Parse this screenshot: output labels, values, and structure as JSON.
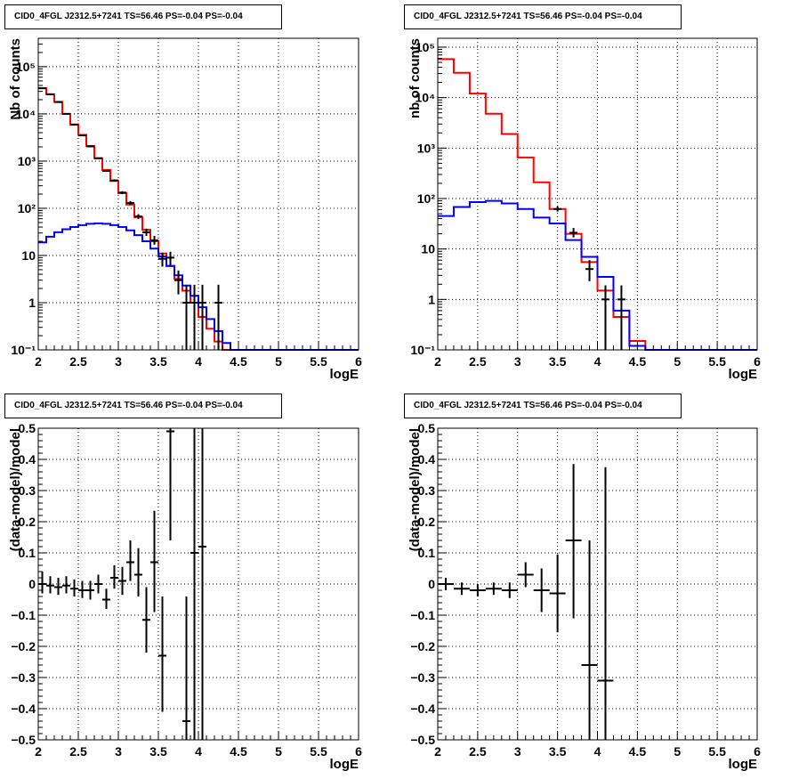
{
  "panels": [
    {
      "title": "CID0_4FGL J2312.5+7241 TS=56.46 PS=-0.04 PS=-0.04",
      "chart_data": {
        "type": "histogram",
        "log_y": true,
        "xlabel": "logE",
        "ylabel": "Nb of counts",
        "xlim": [
          2,
          6
        ],
        "ylim": [
          0.1,
          400000
        ],
        "x_ticks": [
          "2",
          "2.5",
          "3",
          "3.5",
          "4",
          "4.5",
          "5",
          "5.5",
          "6"
        ],
        "y_ticks": [
          {
            "v": 0.1,
            "label": "10⁻¹"
          },
          {
            "v": 1,
            "label": "1"
          },
          {
            "v": 10,
            "label": "10"
          },
          {
            "v": 100,
            "label": "10²"
          },
          {
            "v": 1000,
            "label": "10³"
          },
          {
            "v": 10000,
            "label": "10⁴"
          },
          {
            "v": 100000,
            "label": "10⁵"
          }
        ],
        "grid": true,
        "bin_edges": [
          2.0,
          2.1,
          2.2,
          2.3,
          2.4,
          2.5,
          2.6,
          2.7,
          2.8,
          2.9,
          3.0,
          3.1,
          3.2,
          3.3,
          3.4,
          3.5,
          3.6,
          3.7,
          3.8,
          3.9,
          4.0,
          4.1,
          4.2,
          4.3,
          4.4,
          4.5,
          4.6,
          4.7,
          4.8,
          4.9,
          5.0,
          5.1,
          5.2,
          5.3,
          5.4,
          5.5,
          5.6,
          5.7,
          5.8,
          5.9,
          6.0
        ],
        "series": [
          {
            "color": "#ff0000",
            "values": [
              35000,
              26000,
              18000,
              10000,
              6000,
              3600,
              2100,
              1150,
              650,
              380,
              210,
              120,
              65,
              35,
              20,
              11,
              6,
              3.2,
              1.8,
              1.0,
              0.5,
              0.28,
              0.15,
              0.1,
              0.1,
              0.1,
              0.1,
              0.1,
              0.1,
              0.1,
              0.1,
              0.1,
              0.1,
              0.1,
              0.1,
              0.1,
              0.1,
              0.1,
              0.1,
              0.1
            ]
          },
          {
            "color": "#0000ff",
            "values": [
              19,
              25,
              31,
              36,
              40,
              44,
              47,
              48,
              47,
              44,
              40,
              34,
              27,
              20,
              14,
              9.5,
              6,
              3.8,
              2.3,
              1.4,
              0.8,
              0.45,
              0.25,
              0.14,
              0.1,
              0.1,
              0.1,
              0.1,
              0.1,
              0.1,
              0.1,
              0.1,
              0.1,
              0.1,
              0.1,
              0.1,
              0.1,
              0.1,
              0.1,
              0.1
            ]
          }
        ],
        "points": [
          {
            "x": 2.05,
            "y": 35000,
            "lo": 34800,
            "hi": 35200
          },
          {
            "x": 2.15,
            "y": 26000,
            "lo": 25800,
            "hi": 26200
          },
          {
            "x": 2.25,
            "y": 17800,
            "lo": 17600,
            "hi": 18000
          },
          {
            "x": 2.35,
            "y": 10000,
            "lo": 9800,
            "hi": 10200
          },
          {
            "x": 2.45,
            "y": 5900,
            "lo": 5800,
            "hi": 6000
          },
          {
            "x": 2.55,
            "y": 3500,
            "lo": 3440,
            "hi": 3560
          },
          {
            "x": 2.65,
            "y": 2050,
            "lo": 2000,
            "hi": 2100
          },
          {
            "x": 2.75,
            "y": 1150,
            "lo": 1110,
            "hi": 1190
          },
          {
            "x": 2.85,
            "y": 620,
            "lo": 595,
            "hi": 645
          },
          {
            "x": 2.95,
            "y": 390,
            "lo": 370,
            "hi": 410
          },
          {
            "x": 3.05,
            "y": 215,
            "lo": 200,
            "hi": 230
          },
          {
            "x": 3.15,
            "y": 130,
            "lo": 118,
            "hi": 142
          },
          {
            "x": 3.25,
            "y": 67,
            "lo": 59,
            "hi": 75
          },
          {
            "x": 3.35,
            "y": 31,
            "lo": 26,
            "hi": 37
          },
          {
            "x": 3.45,
            "y": 21,
            "lo": 17,
            "hi": 26
          },
          {
            "x": 3.55,
            "y": 8.5,
            "lo": 5.8,
            "hi": 11.5
          },
          {
            "x": 3.65,
            "y": 9,
            "lo": 6,
            "hi": 12
          },
          {
            "x": 3.75,
            "y": 3,
            "lo": 1.5,
            "hi": 4.8
          },
          {
            "x": 3.85,
            "y": 1,
            "lo": 0.1,
            "hi": 2.4
          },
          {
            "x": 3.95,
            "y": 1,
            "lo": 0.1,
            "hi": 2.4
          },
          {
            "x": 4.05,
            "y": 1,
            "lo": 0.1,
            "hi": 2.4
          },
          {
            "x": 4.25,
            "y": 1,
            "lo": 0.1,
            "hi": 2.4
          }
        ]
      }
    },
    {
      "title": "CID0_4FGL J2312.5+7241 TS=56.46 PS=-0.04 PS=-0.04",
      "chart_data": {
        "type": "histogram",
        "log_y": true,
        "xlabel": "logE",
        "ylabel": "nb of counts",
        "xlim": [
          2,
          6
        ],
        "ylim": [
          0.1,
          150000
        ],
        "x_ticks": [
          "2",
          "2.5",
          "3",
          "3.5",
          "4",
          "4.5",
          "5",
          "5.5",
          "6"
        ],
        "y_ticks": [
          {
            "v": 0.1,
            "label": "10⁻¹"
          },
          {
            "v": 1,
            "label": "1"
          },
          {
            "v": 10,
            "label": "10"
          },
          {
            "v": 100,
            "label": "10²"
          },
          {
            "v": 1000,
            "label": "10³"
          },
          {
            "v": 10000,
            "label": "10⁴"
          },
          {
            "v": 100000,
            "label": "10⁵"
          }
        ],
        "grid": true,
        "bin_edges": [
          2.0,
          2.2,
          2.4,
          2.6,
          2.8,
          3.0,
          3.2,
          3.4,
          3.6,
          3.8,
          4.0,
          4.2,
          4.4,
          4.6,
          4.8,
          5.0,
          5.2,
          5.4,
          5.6,
          5.8,
          6.0
        ],
        "series": [
          {
            "color": "#ff0000",
            "values": [
              58000,
              31000,
              12000,
              4800,
              1900,
              650,
              210,
              62,
              20,
              5.5,
              1.5,
              0.45,
              0.15,
              0.1,
              0.1,
              0.1,
              0.1,
              0.1,
              0.1,
              0.1
            ]
          },
          {
            "color": "#0000ff",
            "values": [
              45,
              68,
              85,
              90,
              80,
              62,
              42,
              32,
              15,
              7,
              2.8,
              0.6,
              0.12,
              0.1,
              0.1,
              0.1,
              0.1,
              0.1,
              0.1,
              0.1
            ]
          }
        ],
        "points": [
          {
            "x": 3.5,
            "y": 62,
            "lo": 55,
            "hi": 70
          },
          {
            "x": 3.7,
            "y": 21,
            "lo": 17,
            "hi": 26
          },
          {
            "x": 3.9,
            "y": 4,
            "lo": 2.3,
            "hi": 6
          },
          {
            "x": 4.1,
            "y": 1,
            "lo": 0.1,
            "hi": 1.9
          },
          {
            "x": 4.3,
            "y": 1,
            "lo": 0.1,
            "hi": 1.9
          }
        ]
      }
    },
    {
      "title": "CID0_4FGL J2312.5+7241 TS=56.46 PS=-0.04 PS=-0.04",
      "chart_data": {
        "type": "scatter",
        "log_y": false,
        "xlabel": "logE",
        "ylabel": "(data-model)/model",
        "xlim": [
          2,
          6
        ],
        "ylim": [
          -0.5,
          0.5
        ],
        "x_ticks": [
          "2",
          "2.5",
          "3",
          "3.5",
          "4",
          "4.5",
          "5",
          "5.5",
          "6"
        ],
        "y_ticks": [
          {
            "v": -0.5,
            "label": "−0.5"
          },
          {
            "v": -0.4,
            "label": "−0.4"
          },
          {
            "v": -0.3,
            "label": "−0.3"
          },
          {
            "v": -0.2,
            "label": "−0.2"
          },
          {
            "v": -0.1,
            "label": "−0.1"
          },
          {
            "v": 0,
            "label": "0"
          },
          {
            "v": 0.1,
            "label": "0.1"
          },
          {
            "v": 0.2,
            "label": "0.2"
          },
          {
            "v": 0.3,
            "label": "0.3"
          },
          {
            "v": 0.4,
            "label": "0.4"
          },
          {
            "v": 0.5,
            "label": "0.5"
          }
        ],
        "grid": true,
        "xerr": 0.05,
        "points": [
          {
            "x": 2.05,
            "y": 0.0,
            "lo": -0.03,
            "hi": 0.04
          },
          {
            "x": 2.15,
            "y": -0.005,
            "lo": -0.03,
            "hi": 0.025
          },
          {
            "x": 2.25,
            "y": -0.01,
            "lo": -0.035,
            "hi": 0.02
          },
          {
            "x": 2.35,
            "y": -0.005,
            "lo": -0.03,
            "hi": 0.025
          },
          {
            "x": 2.45,
            "y": -0.015,
            "lo": -0.04,
            "hi": 0.015
          },
          {
            "x": 2.55,
            "y": -0.02,
            "lo": -0.045,
            "hi": 0.01
          },
          {
            "x": 2.65,
            "y": -0.02,
            "lo": -0.05,
            "hi": 0.01
          },
          {
            "x": 2.75,
            "y": 0.0,
            "lo": -0.03,
            "hi": 0.03
          },
          {
            "x": 2.85,
            "y": -0.05,
            "lo": -0.08,
            "hi": -0.015
          },
          {
            "x": 2.95,
            "y": 0.02,
            "lo": -0.015,
            "hi": 0.06
          },
          {
            "x": 3.05,
            "y": 0.01,
            "lo": -0.035,
            "hi": 0.055
          },
          {
            "x": 3.15,
            "y": 0.07,
            "lo": 0.01,
            "hi": 0.14
          },
          {
            "x": 3.25,
            "y": 0.03,
            "lo": -0.04,
            "hi": 0.115
          },
          {
            "x": 3.35,
            "y": -0.115,
            "lo": -0.22,
            "hi": -0.01
          },
          {
            "x": 3.45,
            "y": 0.07,
            "lo": -0.09,
            "hi": 0.235
          },
          {
            "x": 3.55,
            "y": -0.23,
            "lo": -0.41,
            "hi": -0.04
          },
          {
            "x": 3.65,
            "y": 0.49,
            "lo": 0.14,
            "hi": 0.5
          },
          {
            "x": 3.85,
            "y": -0.44,
            "lo": -0.5,
            "hi": -0.04
          },
          {
            "x": 3.95,
            "y": 0.1,
            "lo": -0.5,
            "hi": 0.5
          },
          {
            "x": 4.05,
            "y": 0.12,
            "lo": -0.5,
            "hi": 0.5
          }
        ]
      }
    },
    {
      "title": "CID0_4FGL J2312.5+7241 TS=56.46 PS=-0.04 PS=-0.04",
      "chart_data": {
        "type": "scatter",
        "log_y": false,
        "xlabel": "logE",
        "ylabel": "(data-model)/model",
        "xlim": [
          2,
          6
        ],
        "ylim": [
          -0.5,
          0.5
        ],
        "x_ticks": [
          "2",
          "2.5",
          "3",
          "3.5",
          "4",
          "4.5",
          "5",
          "5.5",
          "6"
        ],
        "y_ticks": [
          {
            "v": -0.5,
            "label": "−0.5"
          },
          {
            "v": -0.4,
            "label": "−0.4"
          },
          {
            "v": -0.3,
            "label": "−0.3"
          },
          {
            "v": -0.2,
            "label": "−0.2"
          },
          {
            "v": -0.1,
            "label": "−0.1"
          },
          {
            "v": 0,
            "label": "0"
          },
          {
            "v": 0.1,
            "label": "0.1"
          },
          {
            "v": 0.2,
            "label": "0.2"
          },
          {
            "v": 0.3,
            "label": "0.3"
          },
          {
            "v": 0.4,
            "label": "0.4"
          },
          {
            "v": 0.5,
            "label": "0.5"
          }
        ],
        "grid": true,
        "xerr": 0.1,
        "points": [
          {
            "x": 2.1,
            "y": 0.0,
            "lo": -0.02,
            "hi": 0.02
          },
          {
            "x": 2.3,
            "y": -0.015,
            "lo": -0.035,
            "hi": 0.005
          },
          {
            "x": 2.5,
            "y": -0.02,
            "lo": -0.04,
            "hi": 0.0
          },
          {
            "x": 2.7,
            "y": -0.015,
            "lo": -0.035,
            "hi": 0.005
          },
          {
            "x": 2.9,
            "y": -0.02,
            "lo": -0.045,
            "hi": 0.005
          },
          {
            "x": 3.1,
            "y": 0.03,
            "lo": -0.01,
            "hi": 0.07
          },
          {
            "x": 3.3,
            "y": -0.02,
            "lo": -0.09,
            "hi": 0.05
          },
          {
            "x": 3.5,
            "y": -0.03,
            "lo": -0.155,
            "hi": 0.095
          },
          {
            "x": 3.7,
            "y": 0.14,
            "lo": -0.11,
            "hi": 0.385
          },
          {
            "x": 3.9,
            "y": -0.26,
            "lo": -0.5,
            "hi": 0.14
          },
          {
            "x": 4.1,
            "y": -0.31,
            "lo": -0.5,
            "hi": 0.375
          }
        ]
      }
    }
  ]
}
